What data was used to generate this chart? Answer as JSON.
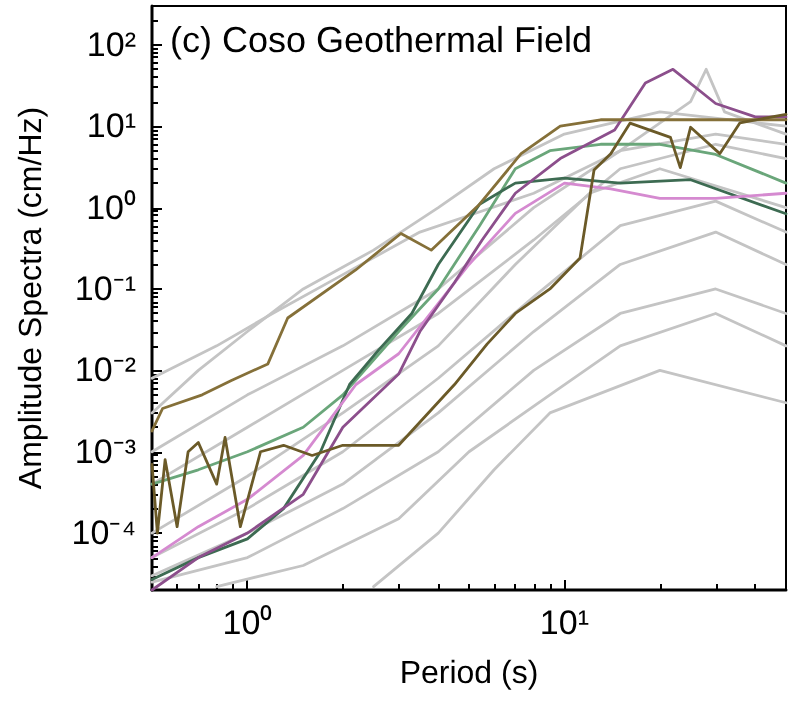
{
  "chart_data": {
    "type": "line",
    "title": "(c) Coso Geothermal Field",
    "xlabel": "Period (s)",
    "ylabel": "Amplitude Spectra (cm/Hz)",
    "log": "xy",
    "line_style": "solid",
    "xlim": [
      0.5,
      50
    ],
    "xticks": [
      {
        "value": 1,
        "label": "10⁰"
      },
      {
        "value": 10,
        "label": "10¹"
      }
    ],
    "ylim": [
      2e-05,
      300
    ],
    "yticks": [
      {
        "value": 0.0001,
        "label": "10⁻⁴"
      },
      {
        "value": 0.001,
        "label": "10⁻³"
      },
      {
        "value": 0.01,
        "label": "10⁻²"
      },
      {
        "value": 0.1,
        "label": "10⁻¹"
      },
      {
        "value": 1,
        "label": "10⁰"
      },
      {
        "value": 10,
        "label": "10¹"
      },
      {
        "value": 100,
        "label": "10²"
      }
    ],
    "series": [
      {
        "color": "#c4c4c4",
        "x": [
          0.5,
          0.7,
          1,
          1.5,
          2.5,
          4,
          6,
          10,
          20,
          50
        ],
        "values": [
          0.003,
          0.01,
          0.03,
          0.1,
          0.3,
          1,
          3,
          8,
          15,
          10
        ]
      },
      {
        "color": "#c4c4c4",
        "x": [
          0.5,
          0.8,
          1.2,
          2,
          3.5,
          5,
          8,
          15,
          25,
          28,
          32,
          50
        ],
        "values": [
          0.008,
          0.02,
          0.05,
          0.15,
          0.5,
          0.8,
          1.5,
          5,
          20,
          50,
          15,
          8
        ]
      },
      {
        "color": "#c4c4c4",
        "x": [
          0.5,
          1,
          2,
          4,
          8,
          15,
          30,
          50
        ],
        "values": [
          0.001,
          0.005,
          0.02,
          0.1,
          1,
          5,
          8,
          6
        ]
      },
      {
        "color": "#c4c4c4",
        "x": [
          0.5,
          1,
          2,
          4,
          8,
          15,
          30,
          50
        ],
        "values": [
          0.0004,
          0.002,
          0.01,
          0.05,
          0.4,
          3,
          6,
          4
        ]
      },
      {
        "color": "#c4c4c4",
        "x": [
          0.5,
          1,
          2,
          4,
          7,
          12,
          20,
          50
        ],
        "values": [
          0.0001,
          0.0005,
          0.003,
          0.02,
          0.2,
          1.5,
          3,
          1
        ]
      },
      {
        "color": "#c4c4c4",
        "x": [
          0.5,
          1,
          2,
          4,
          8,
          15,
          30,
          50
        ],
        "values": [
          5e-05,
          0.0002,
          0.001,
          0.008,
          0.08,
          0.6,
          1.2,
          0.5
        ]
      },
      {
        "color": "#c4c4c4",
        "x": [
          0.5,
          1,
          2,
          4,
          8,
          15,
          30,
          50
        ],
        "values": [
          3e-05,
          0.0001,
          0.0004,
          0.003,
          0.03,
          0.2,
          0.5,
          0.2
        ]
      },
      {
        "color": "#c4c4c4",
        "x": [
          0.5,
          1,
          2,
          4,
          8,
          15,
          30,
          50
        ],
        "values": [
          2.5e-05,
          5e-05,
          0.0002,
          0.001,
          0.01,
          0.05,
          0.1,
          0.05
        ]
      },
      {
        "color": "#c4c4c4",
        "x": [
          0.8,
          1.5,
          3,
          5,
          9,
          15,
          30,
          50
        ],
        "values": [
          2.2e-05,
          4e-05,
          0.00015,
          0.001,
          0.005,
          0.02,
          0.05,
          0.02
        ]
      },
      {
        "color": "#c4c4c4",
        "x": [
          2.5,
          4,
          6,
          9,
          20,
          50
        ],
        "values": [
          2.2e-05,
          0.0001,
          0.0006,
          0.003,
          0.01,
          0.004
        ]
      },
      {
        "color": "#6aa67a",
        "x": [
          0.5,
          0.7,
          1,
          1.5,
          2,
          3,
          4,
          5.4,
          7,
          9,
          13,
          20,
          30,
          50
        ],
        "values": [
          0.0004,
          0.0006,
          0.001,
          0.002,
          0.005,
          0.03,
          0.1,
          0.6,
          3,
          5,
          6,
          6,
          4.5,
          2
        ]
      },
      {
        "color": "#3d6b52",
        "x": [
          0.5,
          0.7,
          1,
          1.3,
          1.7,
          2.1,
          2.6,
          3.3,
          4,
          5.4,
          7,
          10,
          15,
          25,
          50
        ],
        "values": [
          2.7e-05,
          5e-05,
          8.5e-05,
          0.0002,
          0.001,
          0.0067,
          0.018,
          0.05,
          0.2,
          1.1,
          2,
          2.3,
          2,
          2.2,
          0.84
        ]
      },
      {
        "color": "#d58ad0",
        "x": [
          0.5,
          0.7,
          1,
          1.5,
          2.2,
          3,
          5,
          7,
          10,
          14,
          20,
          30,
          50
        ],
        "values": [
          5e-05,
          0.00012,
          0.00026,
          0.0009,
          0.0067,
          0.016,
          0.2,
          0.85,
          2,
          1.7,
          1.3,
          1.3,
          1.5
        ]
      },
      {
        "color": "#8c4f8c",
        "x": [
          0.5,
          0.7,
          1,
          1.5,
          2,
          3,
          3.5,
          4.5,
          5.5,
          7,
          9.7,
          14.4,
          18,
          22,
          30,
          40,
          50
        ],
        "values": [
          2e-05,
          5e-05,
          0.0001,
          0.0003,
          0.002,
          0.009,
          0.03,
          0.12,
          0.4,
          1.5,
          4,
          9,
          34,
          50,
          19,
          13,
          13
        ]
      },
      {
        "color": "#857039",
        "x": [
          0.5,
          0.54,
          0.72,
          0.89,
          1.16,
          1.34,
          2.19,
          3.05,
          3.8,
          5.4,
          7.3,
          9.7,
          13,
          20,
          50
        ],
        "values": [
          0.0018,
          0.0034,
          0.005,
          0.0075,
          0.012,
          0.044,
          0.17,
          0.48,
          0.3,
          1.1,
          4.6,
          10,
          12,
          12,
          12
        ]
      },
      {
        "color": "#6b5a28",
        "x": [
          0.5,
          0.52,
          0.55,
          0.6,
          0.65,
          0.7,
          0.8,
          0.85,
          0.95,
          1.1,
          1.3,
          1.6,
          2,
          3,
          4.5,
          5.7,
          7,
          9,
          11.2,
          12.4,
          14,
          16.1,
          21.6,
          23.2,
          25,
          30.9,
          35.8,
          50
        ],
        "values": [
          0.0007,
          0.0001,
          0.0008,
          0.00012,
          0.001,
          0.0013,
          0.0004,
          0.0015,
          0.00012,
          0.001,
          0.0012,
          0.0009,
          0.0012,
          0.0012,
          0.0067,
          0.021,
          0.05,
          0.1,
          0.24,
          2.9,
          4.6,
          10.9,
          7.3,
          3.1,
          9.7,
          4.6,
          11,
          14
        ]
      }
    ]
  }
}
